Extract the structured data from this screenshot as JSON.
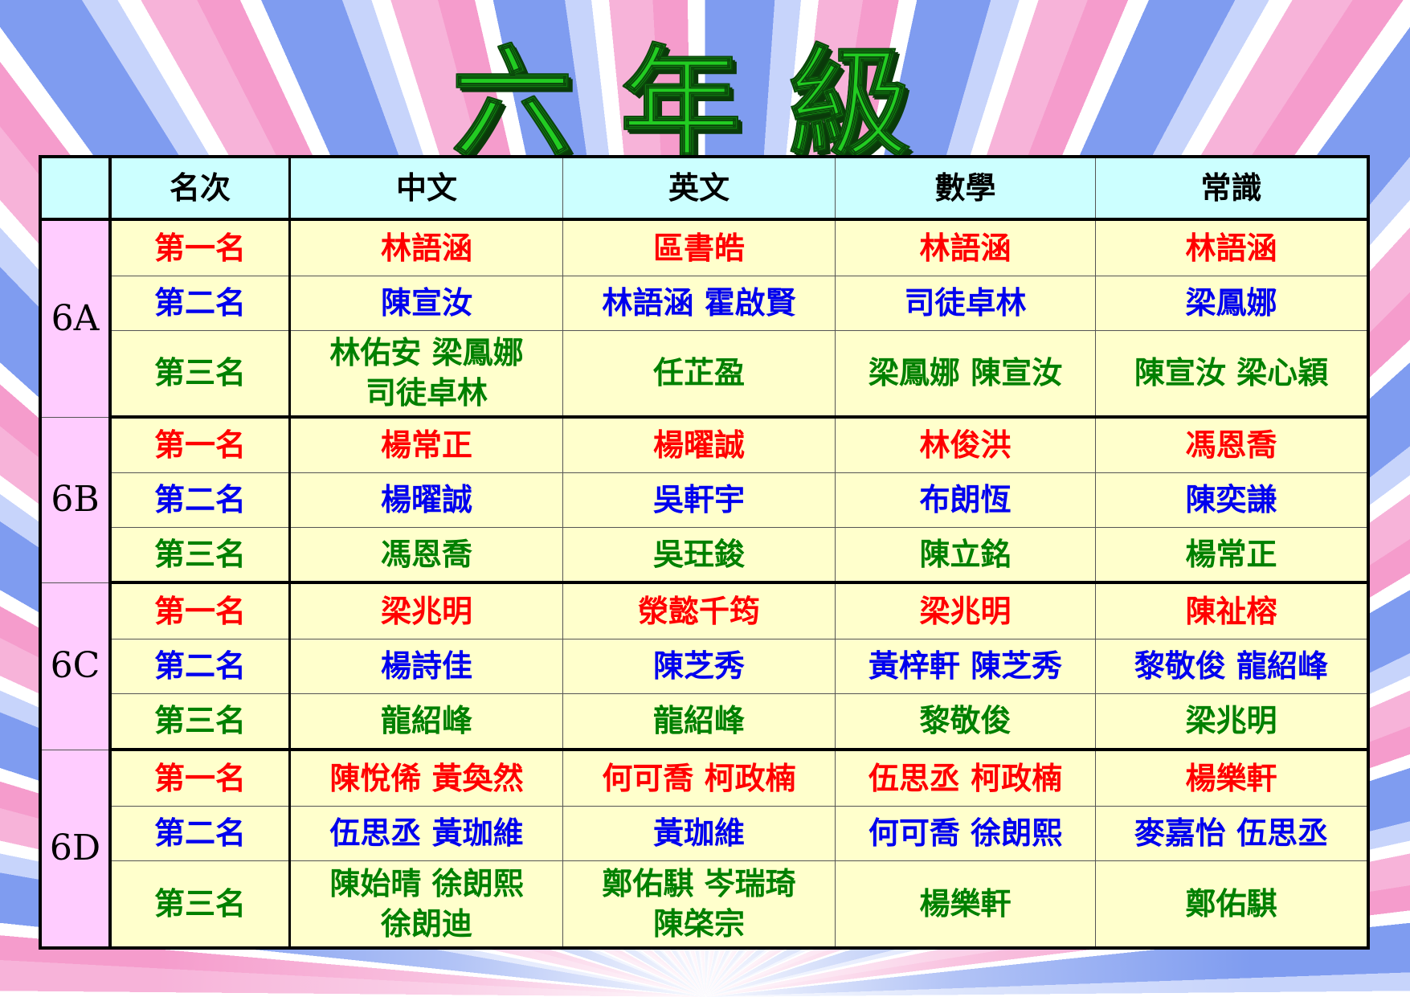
{
  "title": "六年級",
  "colors": {
    "first": "#ff0000",
    "second": "#0000ee",
    "third": "#008000",
    "header_bg": "#ccffff",
    "cell_bg": "#ffffcc",
    "class_bg": "#ffccff",
    "title": "#22cc22"
  },
  "headers": [
    "",
    "名次",
    "中文",
    "英文",
    "數學",
    "常識"
  ],
  "classes": [
    {
      "name": "6A",
      "rows": [
        {
          "rank": "第一名",
          "cells": [
            "林語涵",
            "區書皓",
            "林語涵",
            "林語涵"
          ]
        },
        {
          "rank": "第二名",
          "cells": [
            "陳宣汝",
            "林語涵  霍啟賢",
            "司徒卓林",
            "梁鳳娜"
          ]
        },
        {
          "rank": "第三名",
          "cells": [
            "林佑安  梁鳳娜\n司徒卓林",
            "任芷盈",
            "梁鳳娜  陳宣汝",
            "陳宣汝  梁心穎"
          ]
        }
      ]
    },
    {
      "name": "6B",
      "rows": [
        {
          "rank": "第一名",
          "cells": [
            "楊常正",
            "楊曜誠",
            "林俊洪",
            "馮恩喬"
          ]
        },
        {
          "rank": "第二名",
          "cells": [
            "楊曜誠",
            "吳軒宇",
            "布朗恆",
            "陳奕謙"
          ]
        },
        {
          "rank": "第三名",
          "cells": [
            "馮恩喬",
            "吳玨鋑",
            "陳立銘",
            "楊常正"
          ]
        }
      ]
    },
    {
      "name": "6C",
      "rows": [
        {
          "rank": "第一名",
          "cells": [
            "梁兆明",
            "滎懿千筠",
            "梁兆明",
            "陳祉榕"
          ]
        },
        {
          "rank": "第二名",
          "cells": [
            "楊詩佳",
            "陳芝秀",
            "黃梓軒  陳芝秀",
            "黎敬俊  龍紹峰"
          ]
        },
        {
          "rank": "第三名",
          "cells": [
            "龍紹峰",
            "龍紹峰",
            "黎敬俊",
            "梁兆明"
          ]
        }
      ]
    },
    {
      "name": "6D",
      "rows": [
        {
          "rank": "第一名",
          "cells": [
            "陳悅俙  黃奐然",
            "何可喬  柯政楠",
            "伍思丞  柯政楠",
            "楊樂軒"
          ]
        },
        {
          "rank": "第二名",
          "cells": [
            "伍思丞  黃珈維",
            "黃珈維",
            "何可喬  徐朗熙",
            "麥嘉怡  伍思丞"
          ]
        },
        {
          "rank": "第三名",
          "cells": [
            "陳始晴  徐朗熙\n徐朗迪",
            "鄭佑騏  岑瑞琦\n陳棨宗",
            "楊樂軒",
            "鄭佑騏"
          ]
        }
      ]
    }
  ]
}
